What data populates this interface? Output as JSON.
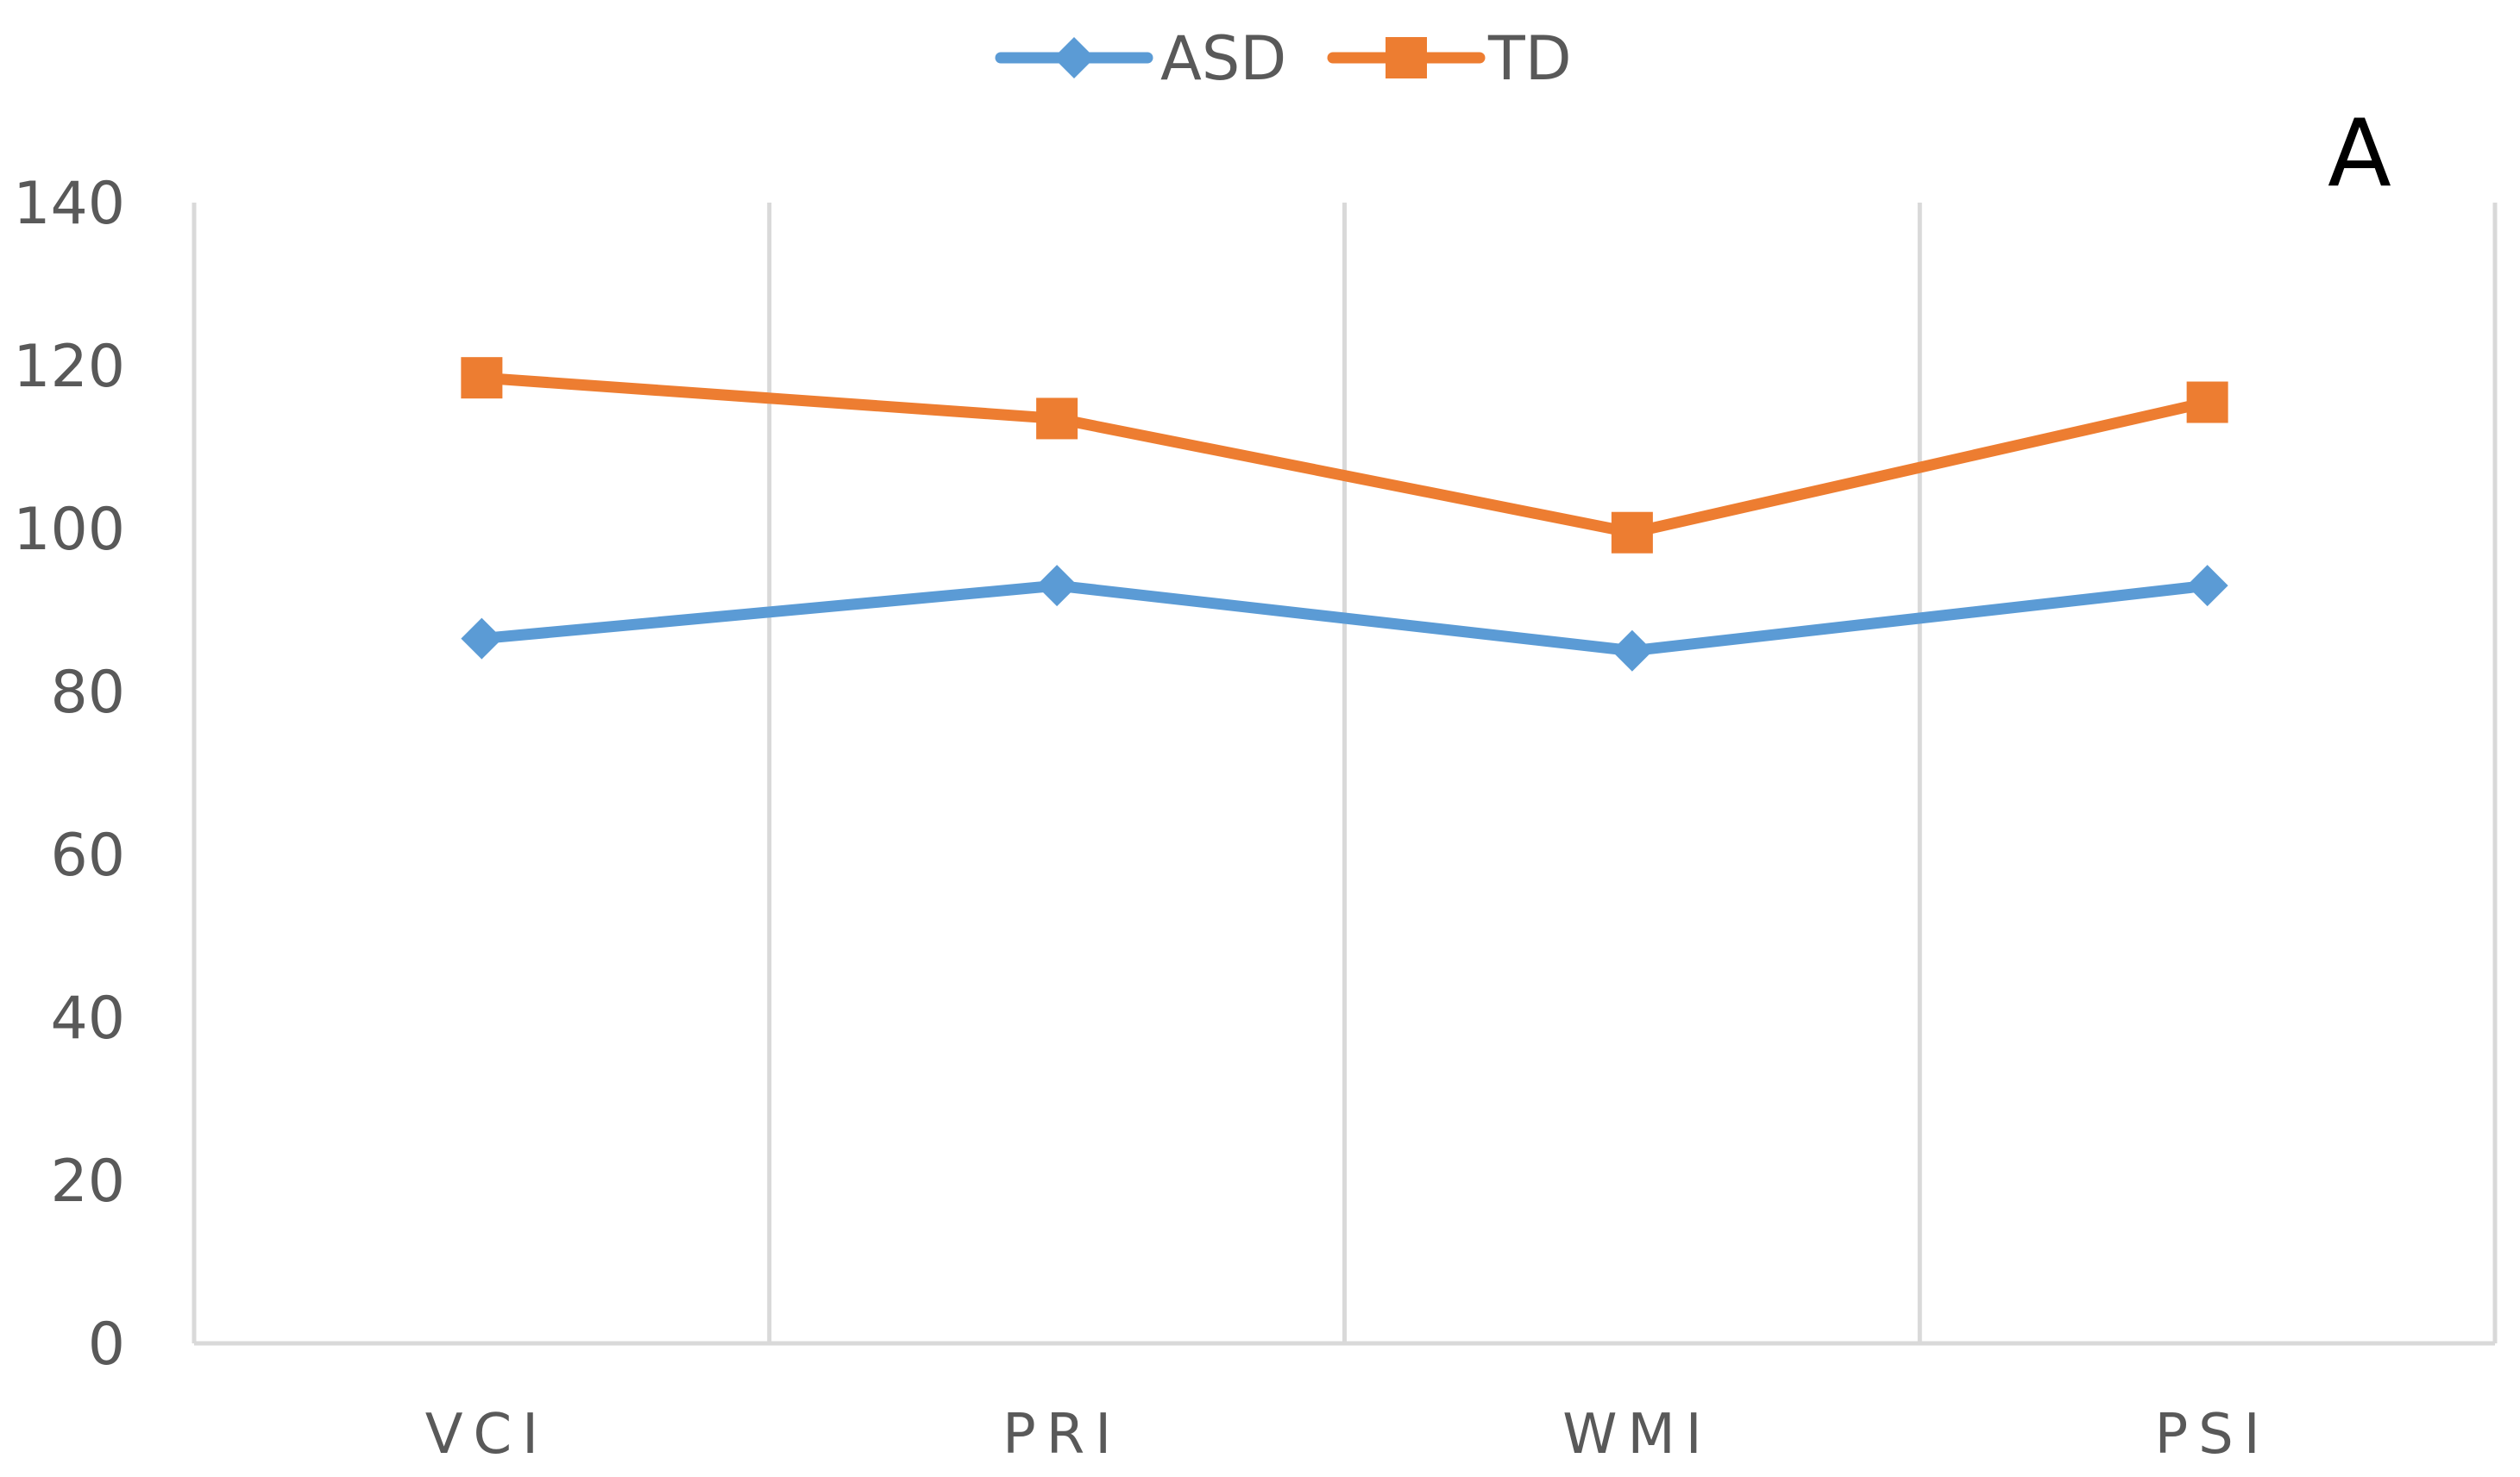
{
  "chart_data": {
    "type": "line",
    "title": "",
    "panel_label": "A",
    "xlabel": "",
    "ylabel": "",
    "categories": [
      "VCI",
      "PRI",
      "WMI",
      "PSI"
    ],
    "ylim": [
      0,
      140
    ],
    "yticks": [
      "0",
      "20",
      "40",
      "60",
      "80",
      "100",
      "120",
      "140"
    ],
    "grid": "vertical",
    "legend_position": "top-center",
    "series": [
      {
        "name": "ASD",
        "marker": "diamond",
        "color": "#5B9BD5",
        "values": [
          86.5,
          93.0,
          85.0,
          93.0
        ]
      },
      {
        "name": "TD",
        "marker": "square",
        "color": "#ED7D31",
        "values": [
          118.5,
          113.5,
          99.5,
          115.5
        ]
      }
    ],
    "colors": {
      "axis": "#D9D9D9",
      "grid": "#D9D9D9",
      "text": "#595959"
    }
  }
}
